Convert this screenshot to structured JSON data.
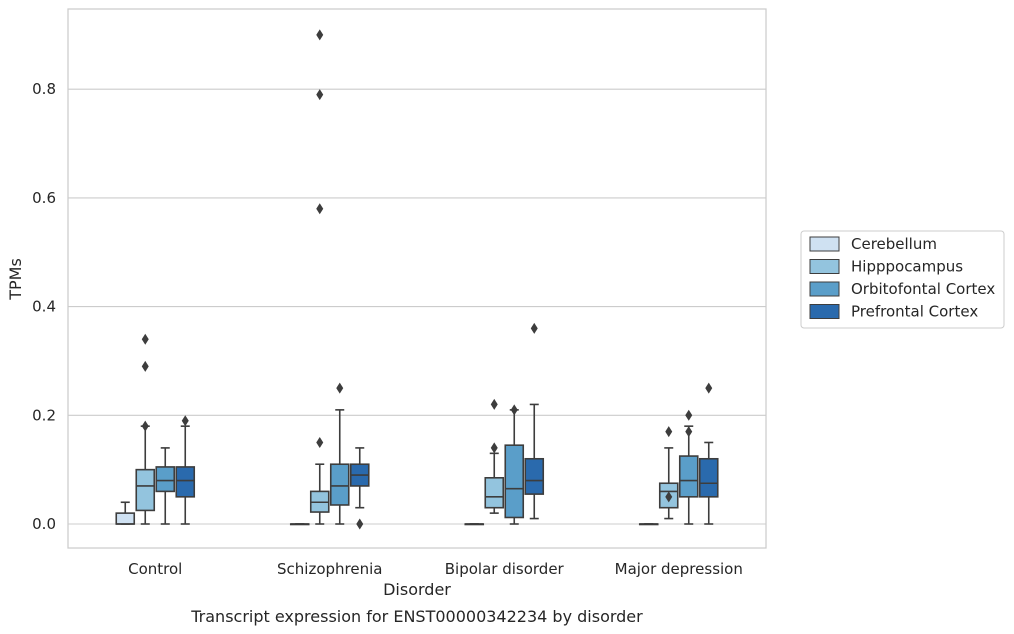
{
  "chart_data": {
    "type": "box",
    "xlabel": "Disorder",
    "ylabel": "TPMs",
    "caption": "Transcript expression for ENST00000342234 by disorder",
    "ylim": [
      -0.045,
      0.955
    ],
    "yticks": [
      0.0,
      0.2,
      0.4,
      0.6,
      0.8
    ],
    "ytick_labels": [
      "0.0",
      "0.2",
      "0.4",
      "0.6",
      "0.8"
    ],
    "grid": "horizontal",
    "legend_position": "right",
    "categories": [
      "Control",
      "Schizophrenia",
      "Bipolar disorder",
      "Major depression"
    ],
    "series": [
      {
        "name": "Cerebellum",
        "color": "#cfe1f2",
        "boxes": [
          {
            "whislo": 0.0,
            "q1": 0.0,
            "med": 0.0,
            "q3": 0.02,
            "whishi": 0.04,
            "fliers": []
          },
          {
            "whislo": 0.0,
            "q1": 0.0,
            "med": 0.0,
            "q3": 0.0,
            "whishi": 0.0,
            "fliers": []
          },
          {
            "whislo": 0.0,
            "q1": 0.0,
            "med": 0.0,
            "q3": 0.0,
            "whishi": 0.0,
            "fliers": []
          },
          {
            "whislo": 0.0,
            "q1": 0.0,
            "med": 0.0,
            "q3": 0.0,
            "whishi": 0.0,
            "fliers": []
          }
        ]
      },
      {
        "name": "Hipppocampus",
        "color": "#93c4de",
        "boxes": [
          {
            "whislo": 0.0,
            "q1": 0.025,
            "med": 0.07,
            "q3": 0.1,
            "whishi": 0.18,
            "fliers": [
              0.18,
              0.29,
              0.34
            ]
          },
          {
            "whislo": 0.0,
            "q1": 0.022,
            "med": 0.04,
            "q3": 0.06,
            "whishi": 0.11,
            "fliers": [
              0.15,
              0.58,
              0.79,
              0.9
            ]
          },
          {
            "whislo": 0.02,
            "q1": 0.03,
            "med": 0.05,
            "q3": 0.085,
            "whishi": 0.13,
            "fliers": [
              0.14,
              0.22
            ]
          },
          {
            "whislo": 0.01,
            "q1": 0.03,
            "med": 0.06,
            "q3": 0.075,
            "whishi": 0.14,
            "fliers": [
              0.05,
              0.17
            ]
          }
        ]
      },
      {
        "name": "Orbitofontal Cortex",
        "color": "#5a9ec9",
        "boxes": [
          {
            "whislo": 0.0,
            "q1": 0.06,
            "med": 0.08,
            "q3": 0.105,
            "whishi": 0.14,
            "fliers": []
          },
          {
            "whislo": 0.0,
            "q1": 0.035,
            "med": 0.07,
            "q3": 0.11,
            "whishi": 0.21,
            "fliers": [
              0.25
            ]
          },
          {
            "whislo": 0.0,
            "q1": 0.012,
            "med": 0.065,
            "q3": 0.145,
            "whishi": 0.21,
            "fliers": [
              0.21
            ]
          },
          {
            "whislo": 0.0,
            "q1": 0.05,
            "med": 0.08,
            "q3": 0.125,
            "whishi": 0.18,
            "fliers": [
              0.17,
              0.2
            ]
          }
        ]
      },
      {
        "name": "Prefrontal Cortex",
        "color": "#2a6aad",
        "boxes": [
          {
            "whislo": 0.0,
            "q1": 0.05,
            "med": 0.08,
            "q3": 0.105,
            "whishi": 0.18,
            "fliers": [
              0.19
            ]
          },
          {
            "whislo": 0.03,
            "q1": 0.07,
            "med": 0.09,
            "q3": 0.11,
            "whishi": 0.14,
            "fliers": [
              0.0
            ]
          },
          {
            "whislo": 0.01,
            "q1": 0.055,
            "med": 0.08,
            "q3": 0.12,
            "whishi": 0.22,
            "fliers": [
              0.36
            ]
          },
          {
            "whislo": 0.0,
            "q1": 0.05,
            "med": 0.075,
            "q3": 0.12,
            "whishi": 0.15,
            "fliers": [
              0.25
            ]
          }
        ]
      }
    ]
  }
}
